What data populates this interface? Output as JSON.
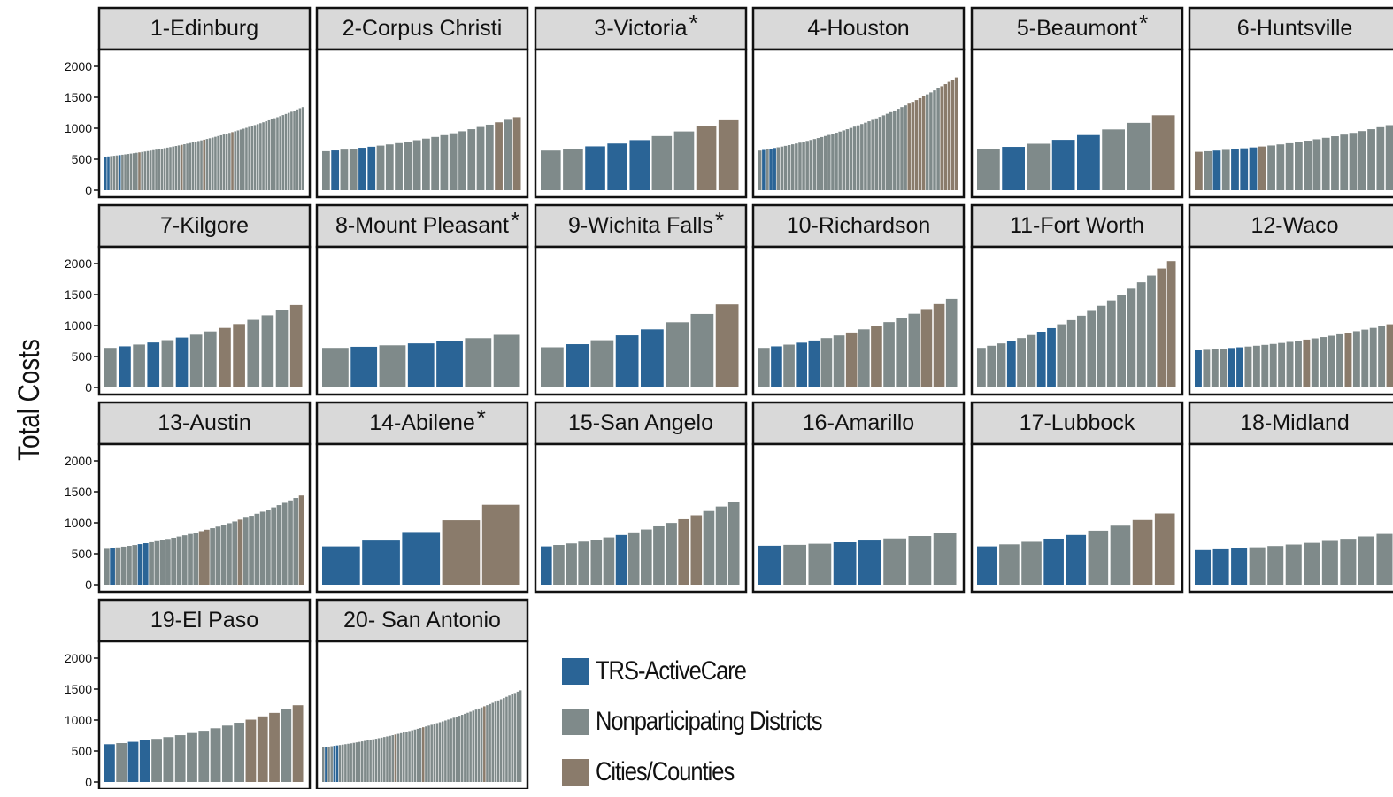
{
  "colors": {
    "trs": "#2a6496",
    "nonparticipating": "#7f8a8a",
    "cities": "#8a7b6b",
    "strip": "#d9d9d9",
    "panel_border": "#111111"
  },
  "chart_data": {
    "type": "bar",
    "ylabel": "Total Costs",
    "yticks": [
      0,
      500,
      1000,
      1500,
      2000
    ],
    "ylim": [
      0,
      2100
    ],
    "legend": [
      {
        "key": "trs",
        "label": "TRS-ActiveCare"
      },
      {
        "key": "nonparticipating",
        "label": "Nonparticipating Districts"
      },
      {
        "key": "cities",
        "label": "Cities/Counties"
      }
    ],
    "panels": [
      {
        "title": "1-Edinburg",
        "star": false,
        "groups": "TTNNNTNNNNNNCNNNNNNNNNNNNNNCNNNNNNNCNNNNNNNNNCNNNNNNNNNNNNNNNNNNNNNNNNN",
        "min": 540,
        "max": 1340
      },
      {
        "title": "2-Corpus Christi",
        "star": false,
        "groups": "NTNNTTNNNNNNNNNNNNNCNC",
        "min": 630,
        "max": 1180
      },
      {
        "title": "3-Victoria",
        "star": true,
        "groups": "NNTTTNNCC",
        "min": 640,
        "max": 1130
      },
      {
        "title": "4-Houston",
        "star": false,
        "groups": "NTNTTNNNNNNNNNNNNNNNNNNNNNNNNNNNNNNNNNNNNCCCCCNNNNCCCCC",
        "min": 640,
        "max": 1820
      },
      {
        "title": "5-Beaumont",
        "star": true,
        "groups": "NTNTTNNC",
        "min": 660,
        "max": 1210
      },
      {
        "title": "6-Huntsville",
        "star": false,
        "groups": "CNTNTTTCNNNNNNNNNNNNNN",
        "min": 620,
        "max": 1050
      },
      {
        "title": "7-Kilgore",
        "star": false,
        "groups": "NTNTNTNNCCNNNC",
        "min": 640,
        "max": 1330
      },
      {
        "title": "8-Mount Pleasant",
        "star": true,
        "groups": "NTNTTNN",
        "min": 640,
        "max": 850
      },
      {
        "title": "9-Wichita Falls",
        "star": true,
        "groups": "NTNTTNNC",
        "min": 650,
        "max": 1340
      },
      {
        "title": "10-Richardson",
        "star": false,
        "groups": "NTNTTNNCNCNNNCCN",
        "min": 640,
        "max": 1430
      },
      {
        "title": "11-Fort Worth",
        "star": false,
        "groups": "NNNTNNTTNNNNNNNNNNCC",
        "min": 640,
        "max": 2040
      },
      {
        "title": "12-Waco",
        "star": false,
        "groups": "TNNNTTNNNNNNNCNNNNCNNNNC",
        "min": 600,
        "max": 1020
      },
      {
        "title": "13-Austin",
        "star": false,
        "groups": "NTNNNNTTNNNNNNNNNCCNNNNNCNNNNNNNNNNC",
        "min": 580,
        "max": 1440
      },
      {
        "title": "14-Abilene",
        "star": true,
        "groups": "TTTCC",
        "min": 620,
        "max": 1290
      },
      {
        "title": "15-San Angelo",
        "star": false,
        "groups": "TNNNNNTNNNNCCNNN",
        "min": 620,
        "max": 1340
      },
      {
        "title": "16-Amarillo",
        "star": false,
        "groups": "TNNTTNNN",
        "min": 630,
        "max": 830
      },
      {
        "title": "17-Lubbock",
        "star": false,
        "groups": "TNNTTNNCC",
        "min": 620,
        "max": 1150
      },
      {
        "title": "18-Midland",
        "star": false,
        "groups": "TTTNNNNNNNN",
        "min": 560,
        "max": 820
      },
      {
        "title": "19-El Paso",
        "star": false,
        "groups": "TNTTNNNNNNNNCCCNC",
        "min": 610,
        "max": 1240
      },
      {
        "title": "20- San Antonio",
        "star": false,
        "groups": "NTNNTTNNNNNNNNNNNNNNNNNNNNCNNNNNNNNNCNNNNNNNNNNNNNNNNNNNNNCNNNNNNNNNNNNN",
        "min": 560,
        "max": 1480
      }
    ]
  }
}
